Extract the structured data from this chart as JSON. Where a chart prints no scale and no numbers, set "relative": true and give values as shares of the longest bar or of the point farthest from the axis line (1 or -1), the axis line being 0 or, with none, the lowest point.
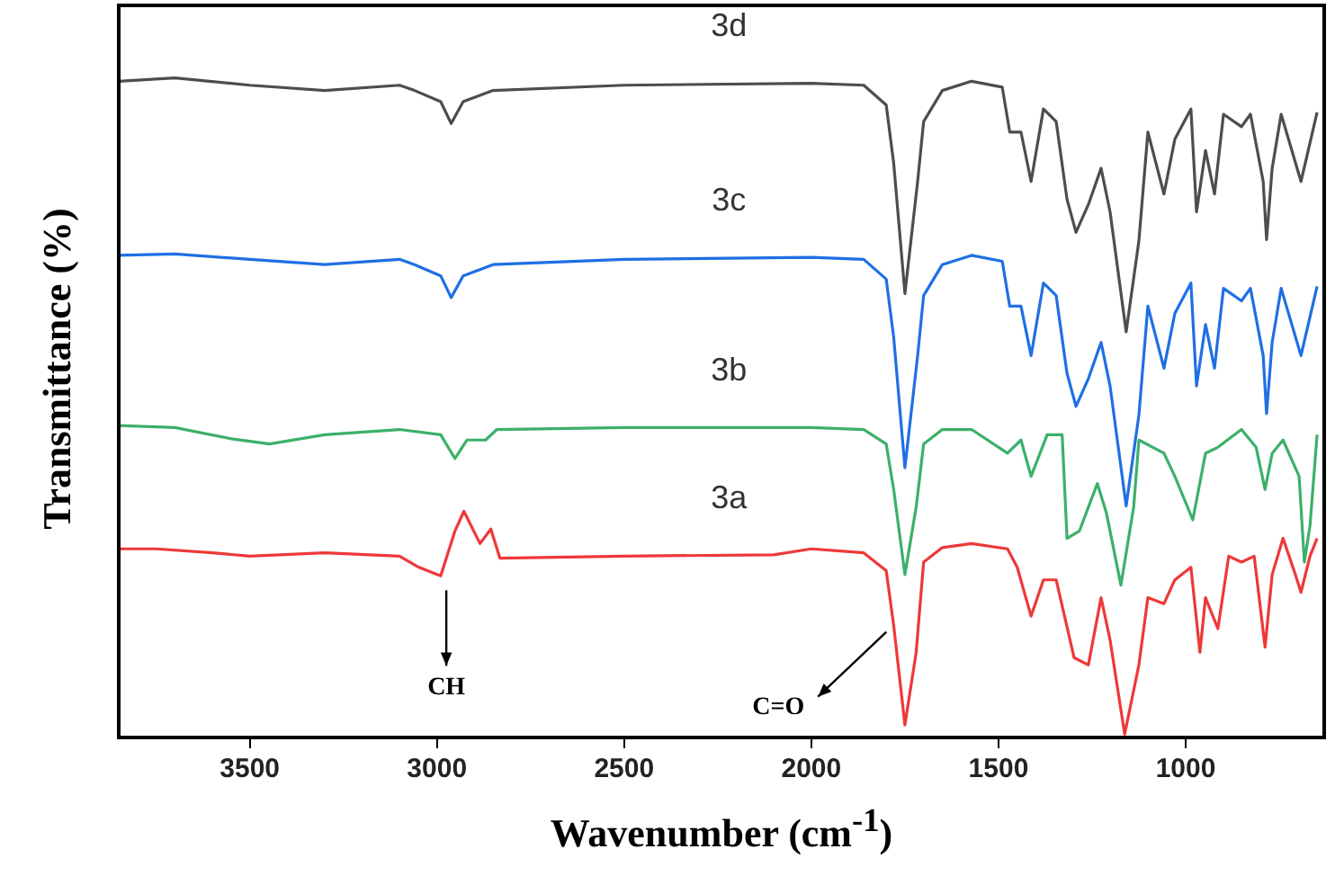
{
  "chart_data": {
    "type": "line",
    "xlabel": "Wavenumber (cm$^{-1}$)",
    "ylabel": "Transmittance (%)",
    "relative": true,
    "xlim": [
      3850,
      630
    ],
    "xticks": [
      3500,
      3000,
      2500,
      2000,
      1500,
      1000
    ],
    "legend": false,
    "marker": "none",
    "x": [
      3850,
      3700,
      3500,
      3300,
      3100,
      3060,
      2990,
      2962,
      2930,
      2850,
      2500,
      2000,
      1860,
      1800,
      1780,
      1750,
      1716,
      1700,
      1650,
      1572,
      1490,
      1470,
      1440,
      1413,
      1380,
      1346,
      1317,
      1293,
      1260,
      1226,
      1202,
      1159,
      1125,
      1101,
      1058,
      1029,
      986,
      971,
      947,
      923,
      899,
      851,
      827,
      793,
      784,
      769,
      745,
      692,
      649
    ],
    "series": [
      {
        "name": "3d",
        "color": "#4d4d4d",
        "values": [
          0.995,
          1,
          0.989,
          0.981,
          0.989,
          0.981,
          0.964,
          0.931,
          0.964,
          0.981,
          0.989,
          0.992,
          0.989,
          0.959,
          0.871,
          0.673,
          0.843,
          0.934,
          0.981,
          0.995,
          0.986,
          0.918,
          0.918,
          0.843,
          0.953,
          0.934,
          0.816,
          0.766,
          0.808,
          0.863,
          0.797,
          0.615,
          0.753,
          0.918,
          0.824,
          0.907,
          0.953,
          0.797,
          0.89,
          0.824,
          0.945,
          0.926,
          0.945,
          0.843,
          0.755,
          0.863,
          0.945,
          0.843,
          0.948
        ]
      },
      {
        "name": "3c",
        "color": "#1f6fe5",
        "values": [
          0.731,
          0.733,
          0.725,
          0.717,
          0.725,
          0.717,
          0.7,
          0.667,
          0.7,
          0.717,
          0.725,
          0.728,
          0.725,
          0.695,
          0.607,
          0.409,
          0.579,
          0.67,
          0.717,
          0.731,
          0.722,
          0.654,
          0.654,
          0.579,
          0.689,
          0.67,
          0.552,
          0.502,
          0.544,
          0.599,
          0.533,
          0.351,
          0.489,
          0.654,
          0.56,
          0.643,
          0.689,
          0.533,
          0.626,
          0.56,
          0.681,
          0.662,
          0.681,
          0.579,
          0.491,
          0.599,
          0.681,
          0.579,
          0.684
        ]
      },
      {
        "name": "3b",
        "color": "#3cb06a",
        "x": [
          3850,
          3700,
          3550,
          3447,
          3300,
          3100,
          2990,
          2952,
          2920,
          2870,
          2840,
          2500,
          2000,
          1860,
          1800,
          1780,
          1750,
          1720,
          1700,
          1650,
          1572,
          1476,
          1440,
          1413,
          1370,
          1330,
          1317,
          1284,
          1236,
          1212,
          1173,
          1139,
          1125,
          1058,
          1029,
          981,
          947,
          914,
          851,
          812,
          788,
          769,
          740,
          697,
          683,
          668,
          649
        ],
        "values": [
          0.473,
          0.47,
          0.453,
          0.445,
          0.459,
          0.467,
          0.459,
          0.423,
          0.451,
          0.451,
          0.467,
          0.47,
          0.47,
          0.467,
          0.445,
          0.376,
          0.247,
          0.349,
          0.445,
          0.467,
          0.467,
          0.431,
          0.451,
          0.396,
          0.459,
          0.459,
          0.302,
          0.313,
          0.385,
          0.341,
          0.231,
          0.349,
          0.451,
          0.431,
          0.396,
          0.33,
          0.431,
          0.44,
          0.467,
          0.44,
          0.376,
          0.431,
          0.451,
          0.396,
          0.266,
          0.321,
          0.459
        ]
      },
      {
        "name": "3a",
        "color": "#ee3838",
        "x": [
          3850,
          3750,
          3600,
          3500,
          3300,
          3100,
          3048,
          2990,
          2952,
          2928,
          2885,
          2856,
          2832,
          2500,
          2100,
          2000,
          1860,
          1800,
          1780,
          1750,
          1720,
          1700,
          1650,
          1572,
          1476,
          1450,
          1413,
          1380,
          1346,
          1298,
          1260,
          1226,
          1202,
          1163,
          1125,
          1101,
          1058,
          1029,
          986,
          962,
          947,
          914,
          885,
          851,
          817,
          788,
          769,
          740,
          707,
          692,
          668,
          649
        ],
        "values": [
          0.286,
          0.286,
          0.28,
          0.275,
          0.28,
          0.275,
          0.258,
          0.245,
          0.313,
          0.343,
          0.294,
          0.316,
          0.272,
          0.275,
          0.277,
          0.286,
          0.28,
          0.253,
          0.17,
          0.019,
          0.129,
          0.266,
          0.288,
          0.294,
          0.286,
          0.258,
          0.184,
          0.239,
          0.239,
          0.121,
          0.11,
          0.212,
          0.148,
          0.005,
          0.11,
          0.212,
          0.203,
          0.239,
          0.258,
          0.129,
          0.212,
          0.165,
          0.275,
          0.266,
          0.275,
          0.137,
          0.247,
          0.302,
          0.247,
          0.22,
          0.275,
          0.302
        ]
      }
    ],
    "annotations": [
      {
        "text": "CH",
        "x": 2975,
        "y": 0.245
      },
      {
        "text": "C=O",
        "x": 1790,
        "y": 0.16
      }
    ]
  }
}
